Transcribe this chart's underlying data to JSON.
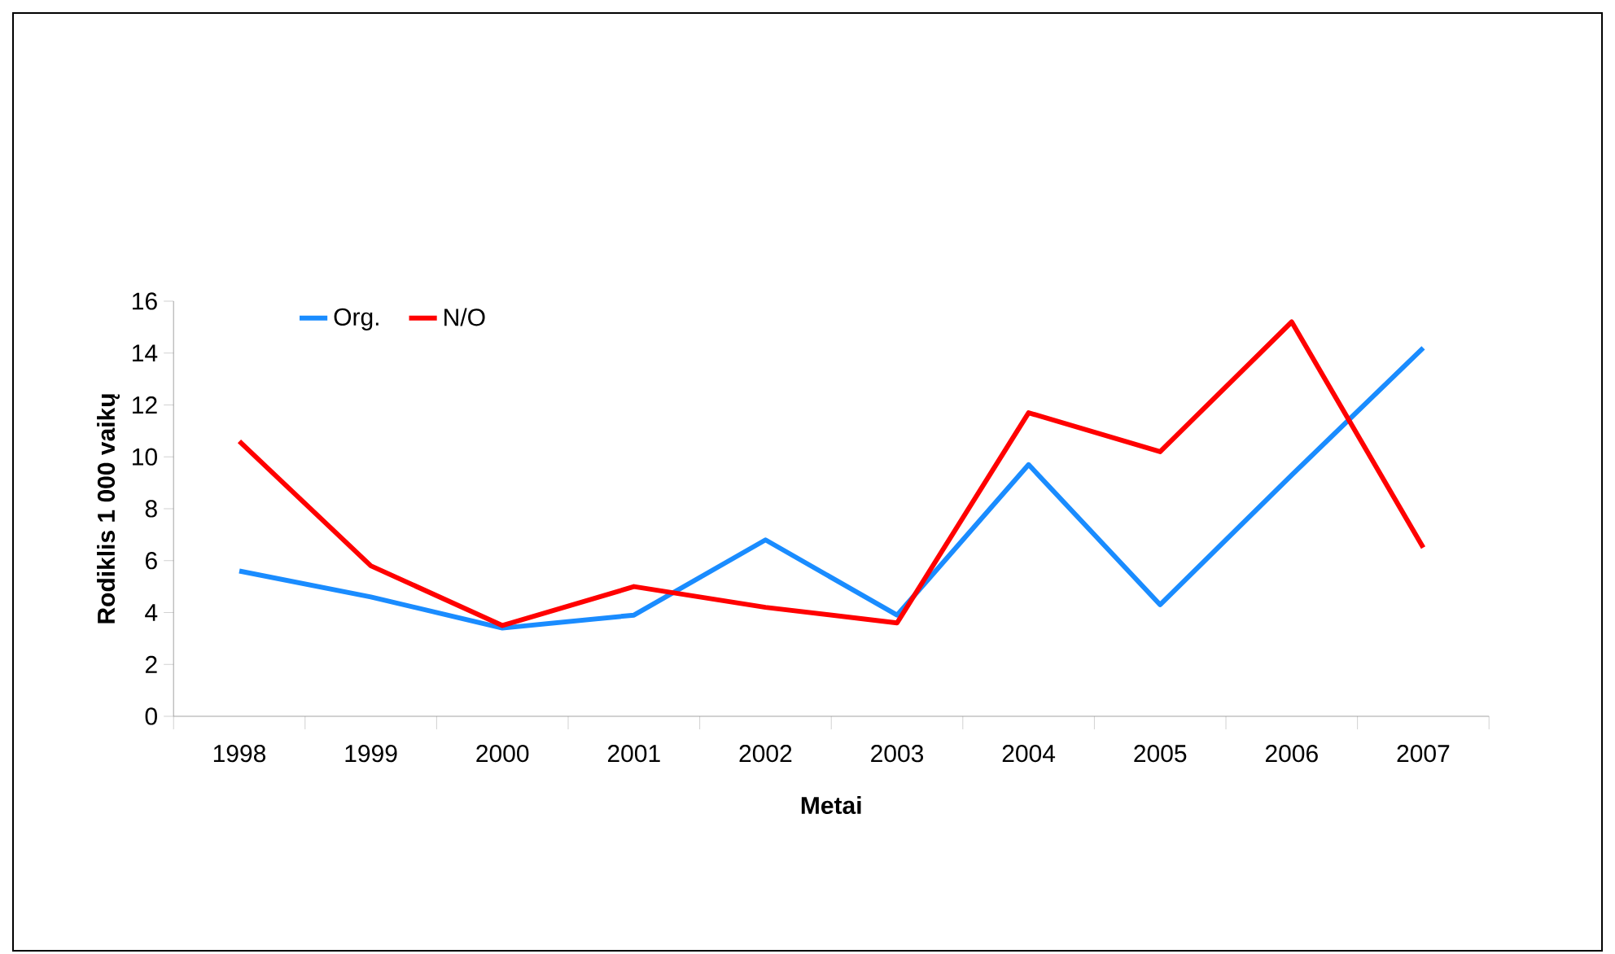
{
  "chart_data": {
    "type": "line",
    "xlabel": "Metai",
    "ylabel": "Rodiklis 1 000 vaikų",
    "categories": [
      "1998",
      "1999",
      "2000",
      "2001",
      "2002",
      "2003",
      "2004",
      "2005",
      "2006",
      "2007"
    ],
    "series": [
      {
        "name": "Org.",
        "color": "#1a8cff",
        "values": [
          5.6,
          4.6,
          3.4,
          3.9,
          6.8,
          3.9,
          9.7,
          4.3,
          9.3,
          14.2
        ]
      },
      {
        "name": "N/O",
        "color": "#ff0000",
        "values": [
          10.6,
          5.8,
          3.5,
          5.0,
          4.2,
          3.6,
          11.7,
          10.2,
          15.2,
          6.5
        ]
      }
    ],
    "ylim": [
      0,
      16
    ],
    "yticks": [
      0,
      2,
      4,
      6,
      8,
      10,
      12,
      14,
      16
    ],
    "grid": false,
    "legend": "top left",
    "marker": "none",
    "line_style": "solid"
  }
}
